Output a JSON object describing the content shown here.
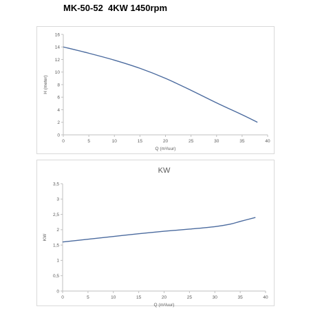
{
  "page": {
    "title": "MK-50-52  4KW 1450rpm"
  },
  "colors": {
    "line": "#4a6a9e",
    "axis": "#bfbfbf",
    "text": "#595959",
    "frame": "#d9d9d9"
  },
  "chart_data": [
    {
      "type": "line",
      "title": "",
      "xlabel": "Q (m³/uur)",
      "ylabel": "H (meter)",
      "xlim": [
        0,
        40
      ],
      "ylim": [
        0,
        16
      ],
      "x_ticks": [
        "0",
        "5",
        "10",
        "15",
        "20",
        "25",
        "30",
        "35",
        "40"
      ],
      "y_ticks": [
        "0",
        "2",
        "4",
        "6",
        "8",
        "10",
        "12",
        "14",
        "16"
      ],
      "grid": false,
      "series": [
        {
          "x": [
            0,
            5,
            10,
            15,
            20,
            25,
            30,
            35,
            38
          ],
          "y": [
            14.0,
            13.0,
            11.9,
            10.6,
            9.0,
            7.1,
            5.1,
            3.2,
            2.0
          ]
        }
      ]
    },
    {
      "type": "line",
      "title": "KW",
      "xlabel": "Q (m³/uur)",
      "ylabel": "KW",
      "xlim": [
        0,
        40
      ],
      "ylim": [
        0,
        3.5
      ],
      "x_ticks": [
        "0",
        "5",
        "10",
        "15",
        "20",
        "25",
        "30",
        "35",
        "40"
      ],
      "y_ticks": [
        "0",
        "0,5",
        "1",
        "1,5",
        "2",
        "2,5",
        "3",
        "3,5"
      ],
      "grid": false,
      "series": [
        {
          "x": [
            0,
            5,
            10,
            15,
            20,
            25,
            30,
            33,
            35,
            38
          ],
          "y": [
            1.6,
            1.69,
            1.78,
            1.87,
            1.95,
            2.02,
            2.1,
            2.18,
            2.27,
            2.4
          ]
        }
      ]
    }
  ]
}
